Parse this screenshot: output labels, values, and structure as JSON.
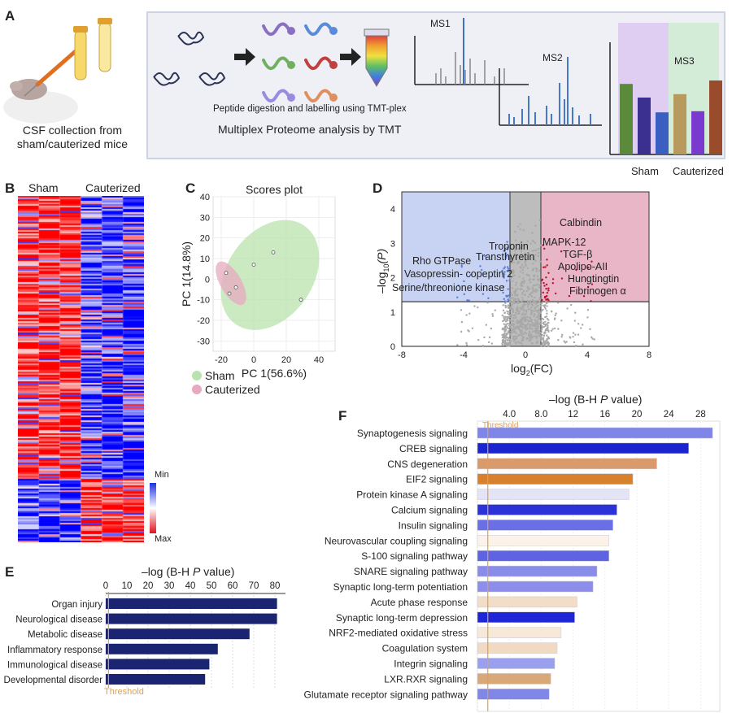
{
  "panels": {
    "A": {
      "letter": "A",
      "caption_line1": "CSF collection from",
      "caption_line2": "sham/cauterized mice",
      "digestion_label": "Peptide digestion and labelling using TMT-plex",
      "workflow_title": "Multiplex Proteome analysis by TMT",
      "ms1": "MS1",
      "ms2": "MS2",
      "ms3": "MS3",
      "ms3_groups": [
        "Sham",
        "Cauterized"
      ],
      "ms3_bar_colors": [
        "#5a8a3a",
        "#3b2f8f",
        "#3b5fc0",
        "#b89a5e",
        "#7a3ad0",
        "#9a4b2c"
      ],
      "ms3_bar_values": [
        0.62,
        0.5,
        0.37,
        0.53,
        0.38,
        0.65
      ]
    },
    "B": {
      "letter": "B",
      "group_labels": [
        "Sham",
        "Cauterized"
      ],
      "legend_min": "Min",
      "legend_max": "Max",
      "colors": {
        "min": "#1f2fe0",
        "mid": "#ffffff",
        "max": "#e0121e"
      }
    },
    "C": {
      "letter": "C",
      "title": "Scores plot",
      "xlabel": "PC 1(56.6%)",
      "ylabel": "PC 1(14.8%)",
      "legend": [
        "Sham",
        "Cauterized"
      ],
      "colors": {
        "sham": "#b9e3ae",
        "cauterized": "#e7a9bf"
      }
    },
    "D": {
      "letter": "D",
      "xlabel_main": "log",
      "xlabel_sub": "2",
      "xlabel_tail": "(FC)",
      "ylabel_main": "–log",
      "ylabel_sub": "10",
      "ylabel_tail": "(P)",
      "labels_left": [
        "Troponin",
        "Rho GTPase",
        "Transthyretin",
        "Vasopressin- copeptin 2",
        "Serine/threonione kinase"
      ],
      "labels_right": [
        "Calbindin",
        "MAPK-12",
        "TGF-β",
        "Apolipo-AII",
        "Hungtingtin",
        "Fibrinogen α"
      ],
      "colors": {
        "down": "#c8d2f2",
        "up": "#e8b6c6",
        "ns": "#a8a8a8",
        "down_dot": "#5a7fd8",
        "up_dot": "#c0102a"
      }
    },
    "E": {
      "letter": "E",
      "axis_title": "–log (B-H ",
      "axis_title_italic": "P",
      "axis_title_tail": " value)",
      "threshold_label": "Threshold",
      "bar_color": "#1a2470",
      "threshold_color": "#e0a050"
    },
    "F": {
      "letter": "F",
      "axis_title": "–log (B-H ",
      "axis_title_italic": "P",
      "axis_title_tail": " value)",
      "threshold_label": "Threshold",
      "threshold_color": "#e0a050"
    }
  },
  "chart_data": [
    {
      "type": "scatter",
      "title": "Scores plot",
      "xlabel": "PC 1(56.6%)",
      "ylabel": "PC 1(14.8%)",
      "xlim": [
        -25,
        50
      ],
      "ylim": [
        -35,
        40
      ],
      "xticks": [
        -20,
        0,
        20,
        40
      ],
      "yticks": [
        40,
        30,
        20,
        10,
        0,
        -10,
        -20,
        -30
      ],
      "series": [
        {
          "name": "Sham",
          "points": [
            [
              0,
              7
            ],
            [
              12,
              13
            ],
            [
              29,
              -10
            ]
          ]
        },
        {
          "name": "Cauterized",
          "points": [
            [
              -17,
              3
            ],
            [
              -15,
              -7
            ],
            [
              -11,
              -4
            ]
          ]
        }
      ]
    },
    {
      "type": "scatter",
      "xlim": [
        -8,
        8
      ],
      "ylim": [
        0,
        4.5
      ],
      "xticks": [
        -8,
        -4,
        0,
        4,
        8
      ],
      "yticks": [
        0,
        1,
        2,
        3,
        4
      ],
      "thresholds": {
        "fc": [
          -1,
          1
        ],
        "p": 1.3
      }
    },
    {
      "type": "bar",
      "orientation": "horizontal",
      "categories": [
        "Organ injury",
        "Neurological disease",
        "Metabolic disease",
        "Inflammatory response",
        "Immunological disease",
        "Developmental disorder"
      ],
      "values": [
        81,
        81,
        68,
        53,
        49,
        47
      ],
      "xlim": [
        0,
        85
      ],
      "xticks": [
        0,
        10,
        20,
        30,
        40,
        50,
        60,
        70,
        80
      ],
      "threshold": 1.3
    },
    {
      "type": "bar",
      "orientation": "horizontal",
      "categories": [
        "Synaptogenesis signaling",
        "CREB signaling",
        "CNS degeneration",
        "EIF2 signaling",
        "Protein kinase A signaling",
        "Calcium signaling",
        "Insulin signaling",
        "Neurovascular coupling signaling",
        "S-100 signaling pathway",
        "SNARE signaling pathway",
        "Synaptic long-term potentiation",
        "Acute phase response",
        "Synaptic long-term depression",
        "NRF2-mediated oxidative stress",
        "Coagulation system",
        "Integrin signaling",
        "LXR.RXR signaling",
        "Glutamate receptor signaling pathway"
      ],
      "values": [
        29.5,
        26.5,
        22.5,
        19.5,
        19,
        17.5,
        17,
        16.5,
        16.5,
        15,
        14.5,
        12.5,
        12.2,
        10.5,
        10,
        9.7,
        9.2,
        9
      ],
      "bar_colors": [
        "#7f86e8",
        "#1a25cf",
        "#d99b6b",
        "#d8812c",
        "#e3e4f6",
        "#2b33d8",
        "#6a6fe6",
        "#fbf3ea",
        "#5e63e2",
        "#8a8cea",
        "#8c8ee9",
        "#f1ddc8",
        "#1e27d6",
        "#f6e9da",
        "#f1d9c2",
        "#9aa0ee",
        "#d9a879",
        "#8187e6"
      ],
      "xlim": [
        0,
        30
      ],
      "xticks": [
        0,
        4.0,
        8.0,
        12,
        16,
        20,
        24,
        28
      ],
      "tick_labels": [
        "0",
        "4.0",
        "8.0",
        "12",
        "16",
        "20",
        "24",
        "28"
      ],
      "threshold": 1.3
    }
  ]
}
